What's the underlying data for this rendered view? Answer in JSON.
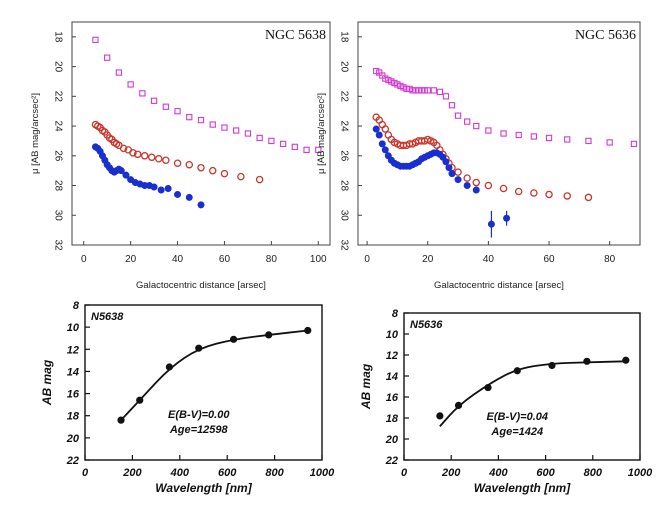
{
  "colors": {
    "magenta": "#d23ad2",
    "red": "#c8362c",
    "blue": "#1a2fd0",
    "black": "#111111",
    "frame": "#444444"
  },
  "chart_data": [
    {
      "id": "ngc5638_profile",
      "type": "scatter",
      "title": "NGC 5638",
      "xlabel": "Galactocentric distance [arsec]",
      "ylabel": "μ [AB mag/arcsec²]",
      "xlim": [
        -5,
        105
      ],
      "ylim": [
        17,
        32
      ],
      "y_inverted": true,
      "xticks": [
        "0",
        "20",
        "40",
        "60",
        "80",
        "100"
      ],
      "yticks": [
        "18",
        "20",
        "22",
        "24",
        "26",
        "28",
        "30",
        "32"
      ],
      "series": [
        {
          "name": "magenta",
          "marker": "square-open",
          "x": [
            5,
            10,
            15,
            20,
            25,
            30,
            35,
            40,
            45,
            50,
            55,
            60,
            65,
            70,
            75,
            80,
            85,
            90,
            95,
            100
          ],
          "y": [
            18.2,
            19.4,
            20.4,
            21.2,
            21.8,
            22.3,
            22.7,
            23.0,
            23.4,
            23.6,
            23.9,
            24.1,
            24.3,
            24.5,
            24.8,
            25.0,
            25.2,
            25.4,
            25.6,
            25.6
          ]
        },
        {
          "name": "red",
          "marker": "circle-open",
          "x": [
            5,
            6,
            7,
            8,
            9,
            10,
            11,
            12,
            13,
            14,
            15,
            17,
            19,
            21,
            23,
            26,
            29,
            32,
            35,
            40,
            45,
            50,
            55,
            60,
            67,
            75
          ],
          "y": [
            23.9,
            24.0,
            24.1,
            24.3,
            24.4,
            24.6,
            24.8,
            24.9,
            25.1,
            25.2,
            25.3,
            25.5,
            25.6,
            25.8,
            25.9,
            26.0,
            26.1,
            26.2,
            26.3,
            26.5,
            26.6,
            26.8,
            27.0,
            27.2,
            27.4,
            27.6
          ]
        },
        {
          "name": "blue",
          "marker": "circle-filled",
          "x": [
            5,
            6,
            7,
            8,
            9,
            10,
            11,
            12,
            13,
            14,
            15,
            16,
            18,
            20,
            22,
            24,
            26,
            28,
            30,
            33,
            36,
            40,
            45,
            50
          ],
          "y": [
            25.4,
            25.5,
            25.7,
            26.0,
            26.3,
            26.6,
            26.8,
            27.0,
            27.1,
            27.0,
            26.9,
            27.0,
            27.3,
            27.6,
            27.8,
            27.9,
            28.0,
            28.0,
            28.1,
            28.3,
            28.2,
            28.6,
            28.8,
            29.3
          ]
        }
      ]
    },
    {
      "id": "ngc5636_profile",
      "type": "scatter",
      "title": "NGC 5636",
      "xlabel": "Galactocentric distance [arsec]",
      "ylabel": "μ [AB mag/arcsec²]",
      "xlim": [
        -3,
        90
      ],
      "ylim": [
        17,
        32
      ],
      "y_inverted": true,
      "xticks": [
        "0",
        "20",
        "40",
        "60",
        "80"
      ],
      "yticks": [
        "18",
        "20",
        "22",
        "24",
        "26",
        "28",
        "30",
        "32"
      ],
      "series": [
        {
          "name": "magenta",
          "marker": "square-open",
          "x": [
            3,
            4,
            5,
            6,
            7,
            8,
            9,
            10,
            11,
            12,
            13,
            14,
            15,
            16,
            17,
            18,
            19,
            20,
            22,
            24,
            26,
            28,
            30,
            33,
            36,
            40,
            45,
            50,
            55,
            60,
            66,
            73,
            80,
            88
          ],
          "y": [
            20.3,
            20.4,
            20.6,
            20.8,
            20.9,
            21.0,
            21.1,
            21.2,
            21.3,
            21.4,
            21.5,
            21.5,
            21.6,
            21.6,
            21.6,
            21.6,
            21.6,
            21.6,
            21.6,
            21.7,
            22.0,
            22.6,
            23.3,
            23.7,
            24.0,
            24.3,
            24.5,
            24.6,
            24.7,
            24.8,
            24.9,
            25.0,
            25.1,
            25.2
          ]
        },
        {
          "name": "red",
          "marker": "circle-open",
          "x": [
            3,
            4,
            5,
            6,
            7,
            8,
            9,
            10,
            11,
            12,
            13,
            14,
            15,
            16,
            17,
            18,
            19,
            20,
            21,
            22,
            23,
            24,
            25,
            26,
            27,
            28,
            30,
            33,
            36,
            40,
            45,
            50,
            55,
            60,
            66,
            73
          ],
          "y": [
            23.4,
            23.6,
            23.9,
            24.2,
            24.6,
            24.9,
            25.1,
            25.2,
            25.3,
            25.3,
            25.3,
            25.2,
            25.2,
            25.1,
            25.0,
            25.0,
            25.0,
            24.9,
            25.0,
            25.1,
            25.3,
            25.6,
            25.9,
            26.2,
            26.5,
            26.8,
            27.1,
            27.5,
            27.8,
            28.0,
            28.2,
            28.4,
            28.5,
            28.6,
            28.7,
            28.8
          ]
        },
        {
          "name": "blue",
          "marker": "circle-filled",
          "x": [
            3,
            4,
            5,
            6,
            7,
            8,
            9,
            10,
            11,
            12,
            13,
            14,
            15,
            16,
            17,
            18,
            19,
            20,
            21,
            22,
            23,
            24,
            25,
            26,
            27,
            28,
            30,
            33,
            36,
            41,
            46
          ],
          "y": [
            24.2,
            24.6,
            25.2,
            25.6,
            26.0,
            26.3,
            26.5,
            26.6,
            26.7,
            26.7,
            26.7,
            26.7,
            26.6,
            26.5,
            26.4,
            26.2,
            26.1,
            26.0,
            25.9,
            25.8,
            25.8,
            25.9,
            26.1,
            26.4,
            26.8,
            27.2,
            27.6,
            28.0,
            28.3,
            30.6,
            30.2
          ],
          "yerr": [
            0,
            0,
            0,
            0,
            0,
            0,
            0,
            0,
            0,
            0,
            0,
            0,
            0,
            0,
            0,
            0,
            0,
            0,
            0,
            0,
            0,
            0,
            0,
            0,
            0,
            0,
            0,
            0,
            0,
            0.9,
            0.5
          ]
        }
      ]
    },
    {
      "id": "n5638_sed",
      "type": "line",
      "title": "N5638",
      "xlabel": "Wavelength [nm]",
      "ylabel": "AB mag",
      "xlim": [
        0,
        1000
      ],
      "ylim": [
        8,
        22
      ],
      "y_inverted": true,
      "xticks": [
        "0",
        "200",
        "400",
        "600",
        "800",
        "1000"
      ],
      "yticks": [
        "8",
        "10",
        "12",
        "14",
        "16",
        "18",
        "20",
        "22"
      ],
      "annotation": [
        "E(B-V)=0.00",
        "Age=12598"
      ],
      "points": {
        "x": [
          152,
          231,
          356,
          480,
          627,
          775,
          940
        ],
        "y": [
          18.4,
          16.6,
          13.6,
          11.9,
          11.1,
          10.7,
          10.3
        ]
      },
      "model": {
        "x": [
          152,
          231,
          356,
          480,
          627,
          775,
          940
        ],
        "y": [
          18.4,
          16.6,
          13.7,
          11.9,
          11.1,
          10.7,
          10.3
        ]
      }
    },
    {
      "id": "n5636_sed",
      "type": "line",
      "title": "N5636",
      "xlabel": "Wavelength [nm]",
      "ylabel": "AB mag",
      "xlim": [
        0,
        1000
      ],
      "ylim": [
        8,
        22
      ],
      "y_inverted": true,
      "xticks": [
        "0",
        "200",
        "400",
        "600",
        "800",
        "1000"
      ],
      "yticks": [
        "8",
        "10",
        "12",
        "14",
        "16",
        "18",
        "20",
        "22"
      ],
      "annotation": [
        "E(B-V)=0.04",
        "Age=1424"
      ],
      "points": {
        "x": [
          152,
          231,
          356,
          480,
          627,
          775,
          940
        ],
        "y": [
          17.8,
          16.8,
          15.1,
          13.5,
          13.0,
          12.6,
          12.5
        ]
      },
      "model": {
        "x": [
          152,
          231,
          356,
          480,
          627,
          775,
          940
        ],
        "y": [
          18.8,
          16.8,
          14.8,
          13.3,
          12.8,
          12.7,
          12.6
        ]
      }
    }
  ]
}
